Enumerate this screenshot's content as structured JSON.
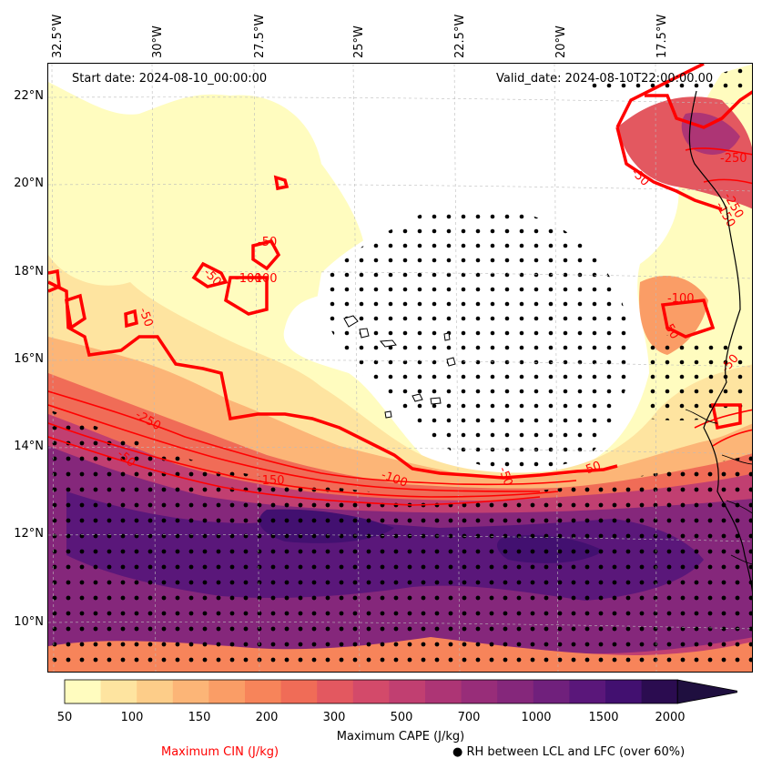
{
  "header": {
    "start_date": "Start date: 2024-08-10_00:00:00",
    "valid_date": "Valid_date: 2024-08-10T22:00:00.00"
  },
  "lon_ticks": [
    "32.5°W",
    "30°W",
    "27.5°W",
    "25°W",
    "22.5°W",
    "20°W",
    "17.5°W"
  ],
  "lat_ticks": [
    "22°N",
    "20°N",
    "18°N",
    "16°N",
    "14°N",
    "12°N",
    "10°N"
  ],
  "contour_labels": [
    "-50",
    "-50",
    "-50",
    "-100",
    "-100",
    "-150",
    "-100",
    "-250",
    "-50",
    "-50",
    "-50",
    "-100",
    "-50",
    "-250",
    "-150",
    "-50",
    "-250",
    "-50"
  ],
  "colorbar": {
    "ticks": [
      "50",
      "100",
      "150",
      "200",
      "300",
      "500",
      "700",
      "1000",
      "1500",
      "2000"
    ],
    "label": "Maximum CAPE (J/kg)",
    "colors": [
      "#fffcbf",
      "#fee4a0",
      "#fdcd89",
      "#fcb577",
      "#fa9d66",
      "#f7845a",
      "#f06c57",
      "#e35860",
      "#d34a6a",
      "#c13f71",
      "#ad3575",
      "#982d79",
      "#85277b",
      "#70207c",
      "#5a177a",
      "#421070",
      "#2b0c50"
    ]
  },
  "legend": {
    "cin_label": "Maximum CIN (J/kg)",
    "cin_color": "#ff0000",
    "rh_marker": "●",
    "rh_label": "RH between LCL and LFC (over 60%)"
  }
}
